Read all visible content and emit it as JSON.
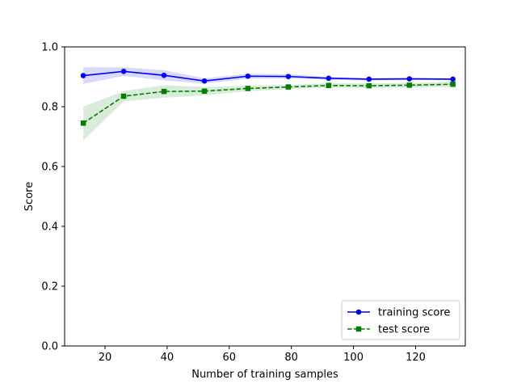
{
  "chart_data": {
    "type": "line",
    "title": "",
    "xlabel": "Number of training samples",
    "ylabel": "Score",
    "xlim": [
      7,
      136
    ],
    "ylim": [
      0.0,
      1.0
    ],
    "xticks": [
      20,
      40,
      60,
      80,
      100,
      120
    ],
    "yticks": [
      0.0,
      0.2,
      0.4,
      0.6,
      0.8,
      1.0
    ],
    "xtick_labels": [
      "20",
      "40",
      "60",
      "80",
      "100",
      "120"
    ],
    "ytick_labels": [
      "0.0",
      "0.2",
      "0.4",
      "0.6",
      "0.8",
      "1.0"
    ],
    "grid": false,
    "legend_position": "lower-right",
    "x": [
      13,
      26,
      39,
      52,
      66,
      79,
      92,
      105,
      118,
      132
    ],
    "series": [
      {
        "name": "training score",
        "color": "#0000ff",
        "line_style": "solid",
        "marker": "circle",
        "values": [
          0.904,
          0.918,
          0.905,
          0.886,
          0.902,
          0.901,
          0.895,
          0.892,
          0.893,
          0.892
        ],
        "band_upper": [
          0.932,
          0.932,
          0.922,
          0.895,
          0.91,
          0.908,
          0.9,
          0.896,
          0.897,
          0.895
        ],
        "band_lower": [
          0.876,
          0.903,
          0.888,
          0.877,
          0.894,
          0.894,
          0.89,
          0.888,
          0.889,
          0.889
        ],
        "band_color": "#0000ff"
      },
      {
        "name": "test score",
        "color": "#008000",
        "line_style": "dashed",
        "marker": "square",
        "values": [
          0.745,
          0.835,
          0.851,
          0.852,
          0.861,
          0.866,
          0.871,
          0.87,
          0.872,
          0.875
        ],
        "band_upper": [
          0.8,
          0.852,
          0.872,
          0.866,
          0.87,
          0.873,
          0.878,
          0.878,
          0.879,
          0.884
        ],
        "band_lower": [
          0.686,
          0.818,
          0.83,
          0.838,
          0.852,
          0.859,
          0.864,
          0.862,
          0.865,
          0.866
        ],
        "band_color": "#008000"
      }
    ]
  }
}
